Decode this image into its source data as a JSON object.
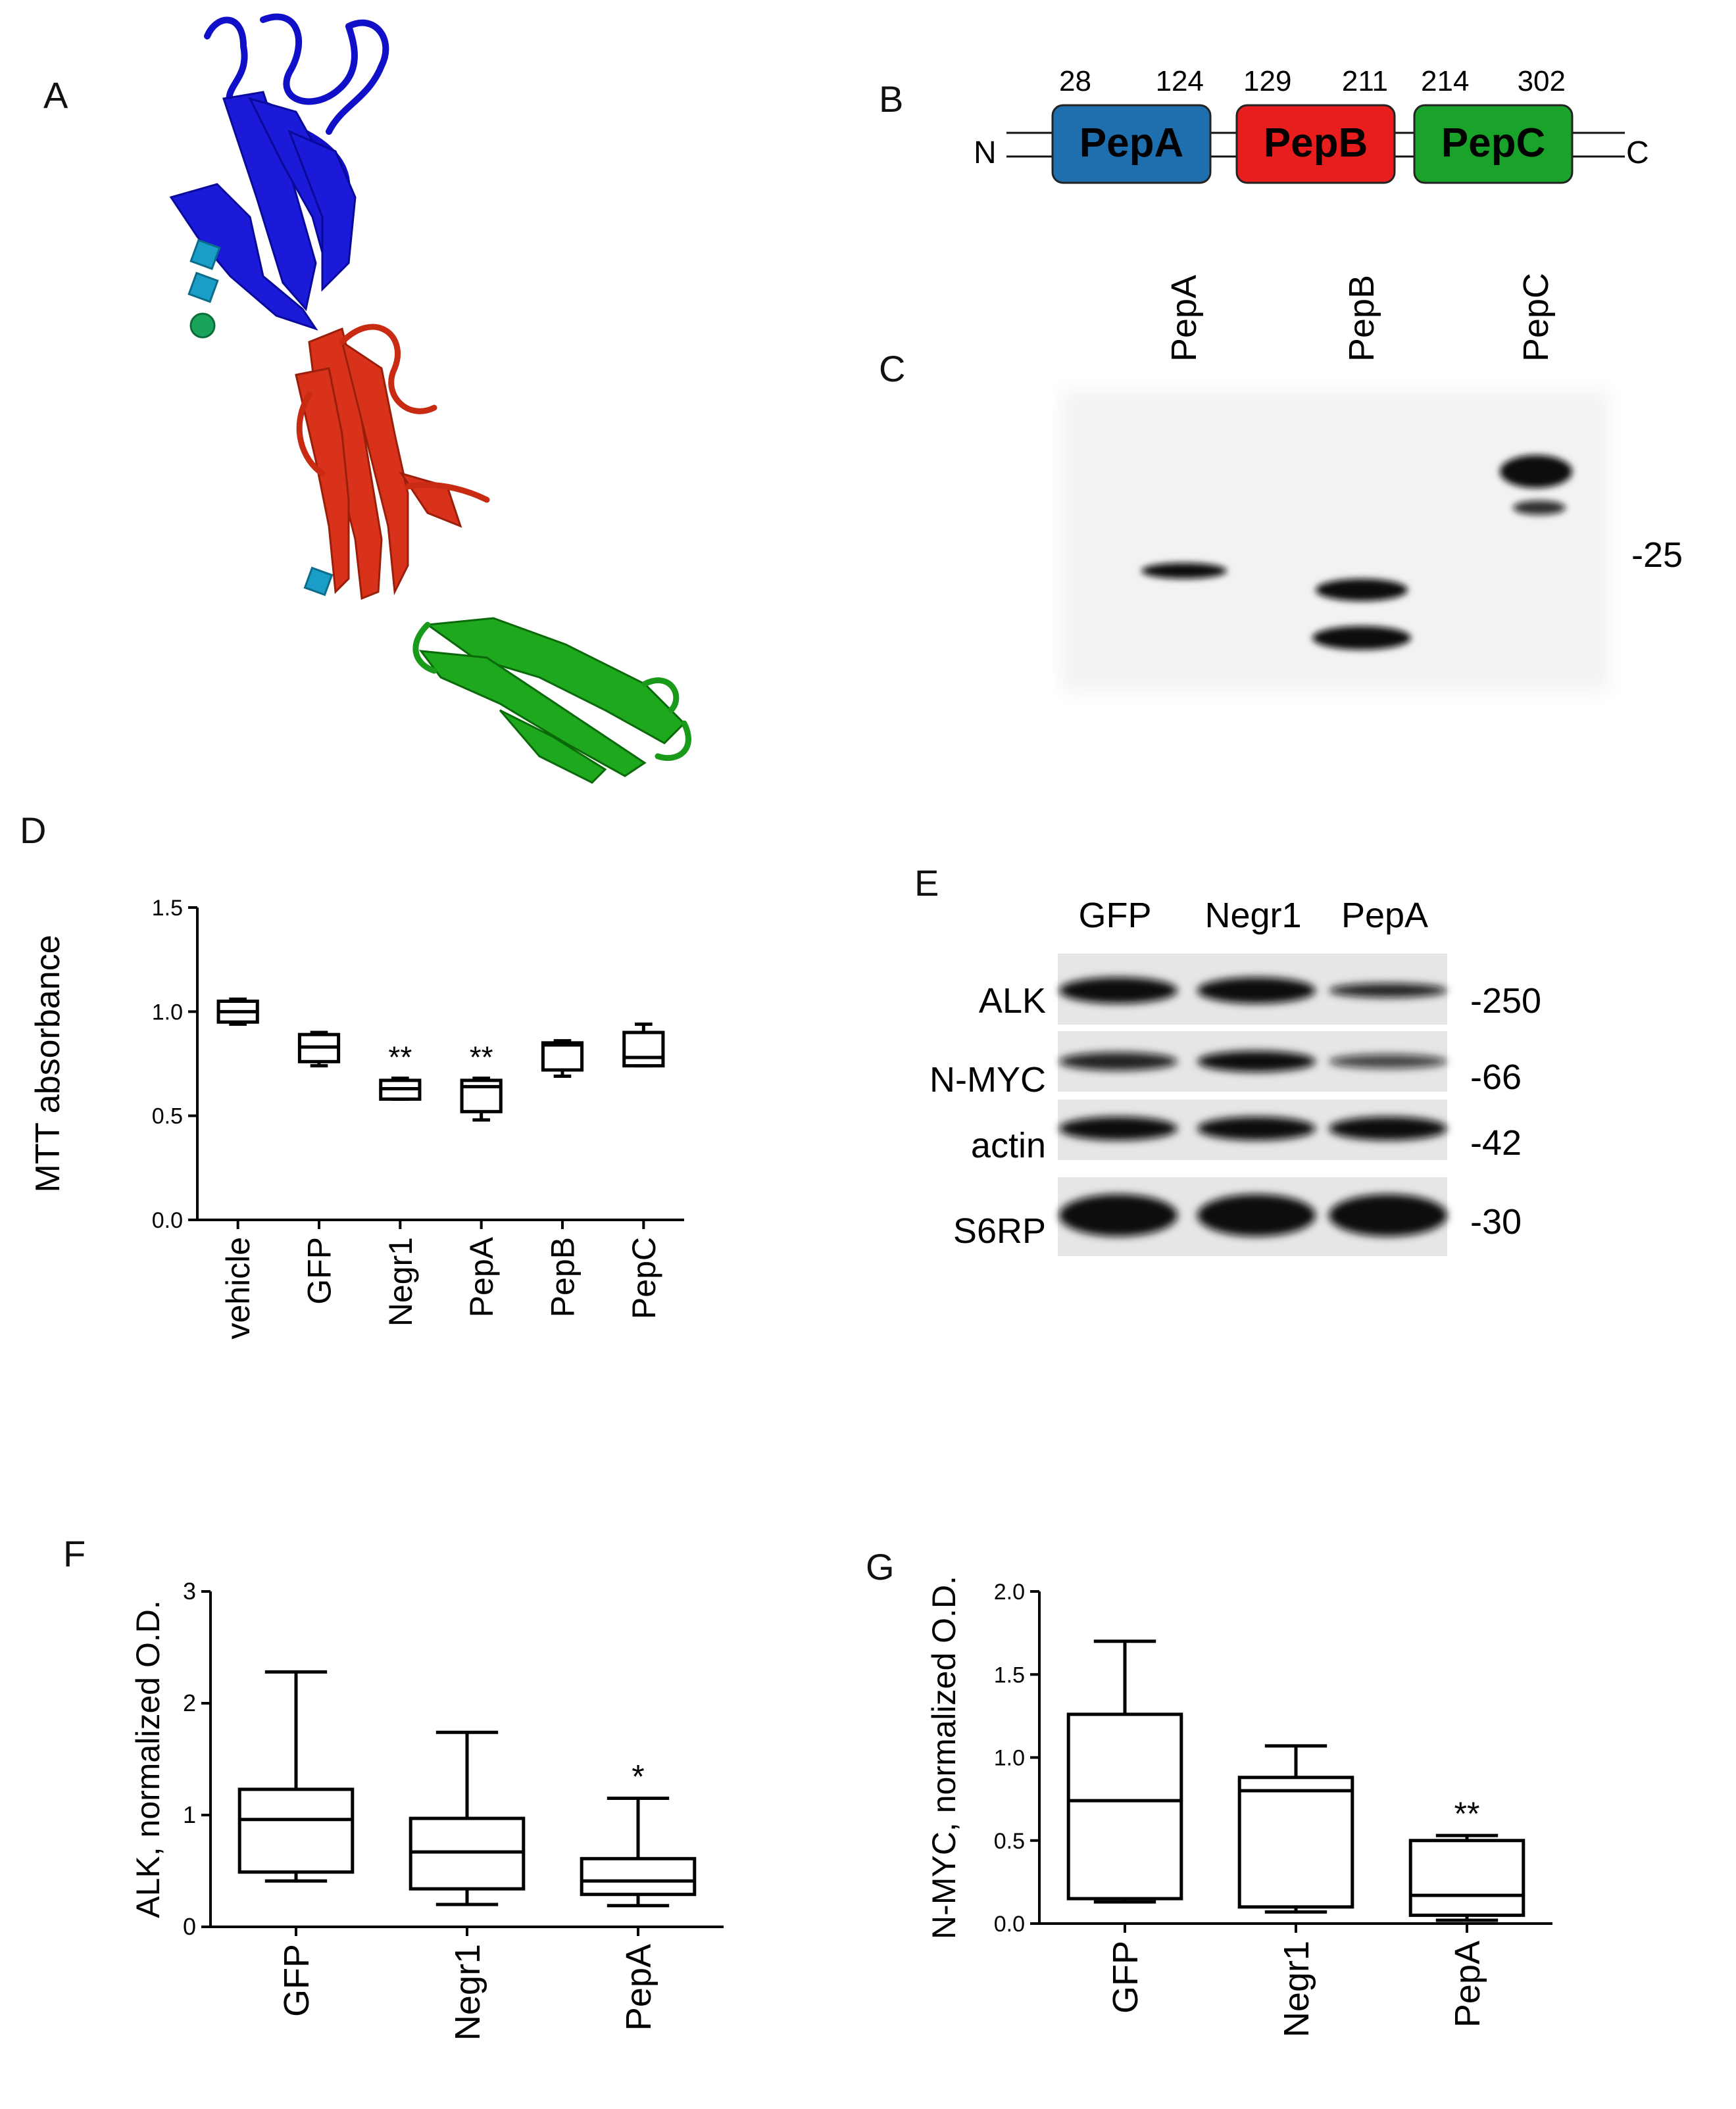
{
  "panels": {
    "A": {
      "letter": "A"
    },
    "B": {
      "letter": "B",
      "n_term": "N",
      "c_term": "C",
      "domains": [
        {
          "name": "PepA",
          "start": "28",
          "end": "124",
          "color": "#1f6fae"
        },
        {
          "name": "PepB",
          "start": "129",
          "end": "211",
          "color": "#e81e1e"
        },
        {
          "name": "PepC",
          "start": "214",
          "end": "302",
          "color": "#1aa32a"
        }
      ]
    },
    "C": {
      "letter": "C",
      "lanes": [
        "PepA",
        "PepB",
        "PepC"
      ],
      "marker": "-25"
    },
    "D": {
      "letter": "D"
    },
    "E": {
      "letter": "E",
      "lanes": [
        "GFP",
        "Negr1",
        "PepA"
      ],
      "rows": [
        {
          "label": "ALK",
          "marker": "-250"
        },
        {
          "label": "N-MYC",
          "marker": "-66"
        },
        {
          "label": "actin",
          "marker": "-42"
        },
        {
          "label": "S6RP",
          "marker": "-30"
        }
      ]
    },
    "F": {
      "letter": "F"
    },
    "G": {
      "letter": "G"
    }
  },
  "chart_data": [
    {
      "id": "D",
      "type": "box",
      "ylabel": "MTT absorbance",
      "ylim": [
        0,
        1.5
      ],
      "yticks": [
        "0.0",
        "0.5",
        "1.0",
        "1.5"
      ],
      "categories": [
        "vehicle",
        "GFP",
        "Negr1",
        "PepA",
        "PepB",
        "PepC"
      ],
      "boxes": [
        {
          "min": 0.94,
          "q1": 0.95,
          "median": 1.0,
          "q3": 1.05,
          "max": 1.06,
          "sig": ""
        },
        {
          "min": 0.74,
          "q1": 0.76,
          "median": 0.83,
          "q3": 0.89,
          "max": 0.9,
          "sig": ""
        },
        {
          "min": 0.58,
          "q1": 0.58,
          "median": 0.63,
          "q3": 0.67,
          "max": 0.68,
          "sig": "**"
        },
        {
          "min": 0.48,
          "q1": 0.52,
          "median": 0.64,
          "q3": 0.67,
          "max": 0.68,
          "sig": "**"
        },
        {
          "min": 0.69,
          "q1": 0.72,
          "median": 0.84,
          "q3": 0.85,
          "max": 0.86,
          "sig": ""
        },
        {
          "min": 0.74,
          "q1": 0.74,
          "median": 0.78,
          "q3": 0.9,
          "max": 0.94,
          "sig": ""
        }
      ]
    },
    {
      "id": "F",
      "type": "box",
      "ylabel": "ALK, normalized O.D.",
      "ylim": [
        0,
        3
      ],
      "yticks": [
        "0",
        "1",
        "2",
        "3"
      ],
      "categories": [
        "GFP",
        "Negr1",
        "PepA"
      ],
      "boxes": [
        {
          "min": 0.41,
          "q1": 0.49,
          "median": 0.96,
          "q3": 1.23,
          "max": 2.28,
          "sig": ""
        },
        {
          "min": 0.2,
          "q1": 0.34,
          "median": 0.67,
          "q3": 0.97,
          "max": 1.74,
          "sig": ""
        },
        {
          "min": 0.19,
          "q1": 0.29,
          "median": 0.41,
          "q3": 0.61,
          "max": 1.15,
          "sig": "*"
        }
      ]
    },
    {
      "id": "G",
      "type": "box",
      "ylabel": "N-MYC, normalized O.D.",
      "ylim": [
        0,
        2
      ],
      "yticks": [
        "0.0",
        "0.5",
        "1.0",
        "1.5",
        "2.0"
      ],
      "categories": [
        "GFP",
        "Negr1",
        "PepA"
      ],
      "boxes": [
        {
          "min": 0.13,
          "q1": 0.15,
          "median": 0.74,
          "q3": 1.26,
          "max": 1.7,
          "sig": ""
        },
        {
          "min": 0.07,
          "q1": 0.1,
          "median": 0.8,
          "q3": 0.88,
          "max": 1.07,
          "sig": ""
        },
        {
          "min": 0.02,
          "q1": 0.05,
          "median": 0.17,
          "q3": 0.5,
          "max": 0.53,
          "sig": "**"
        }
      ]
    }
  ]
}
